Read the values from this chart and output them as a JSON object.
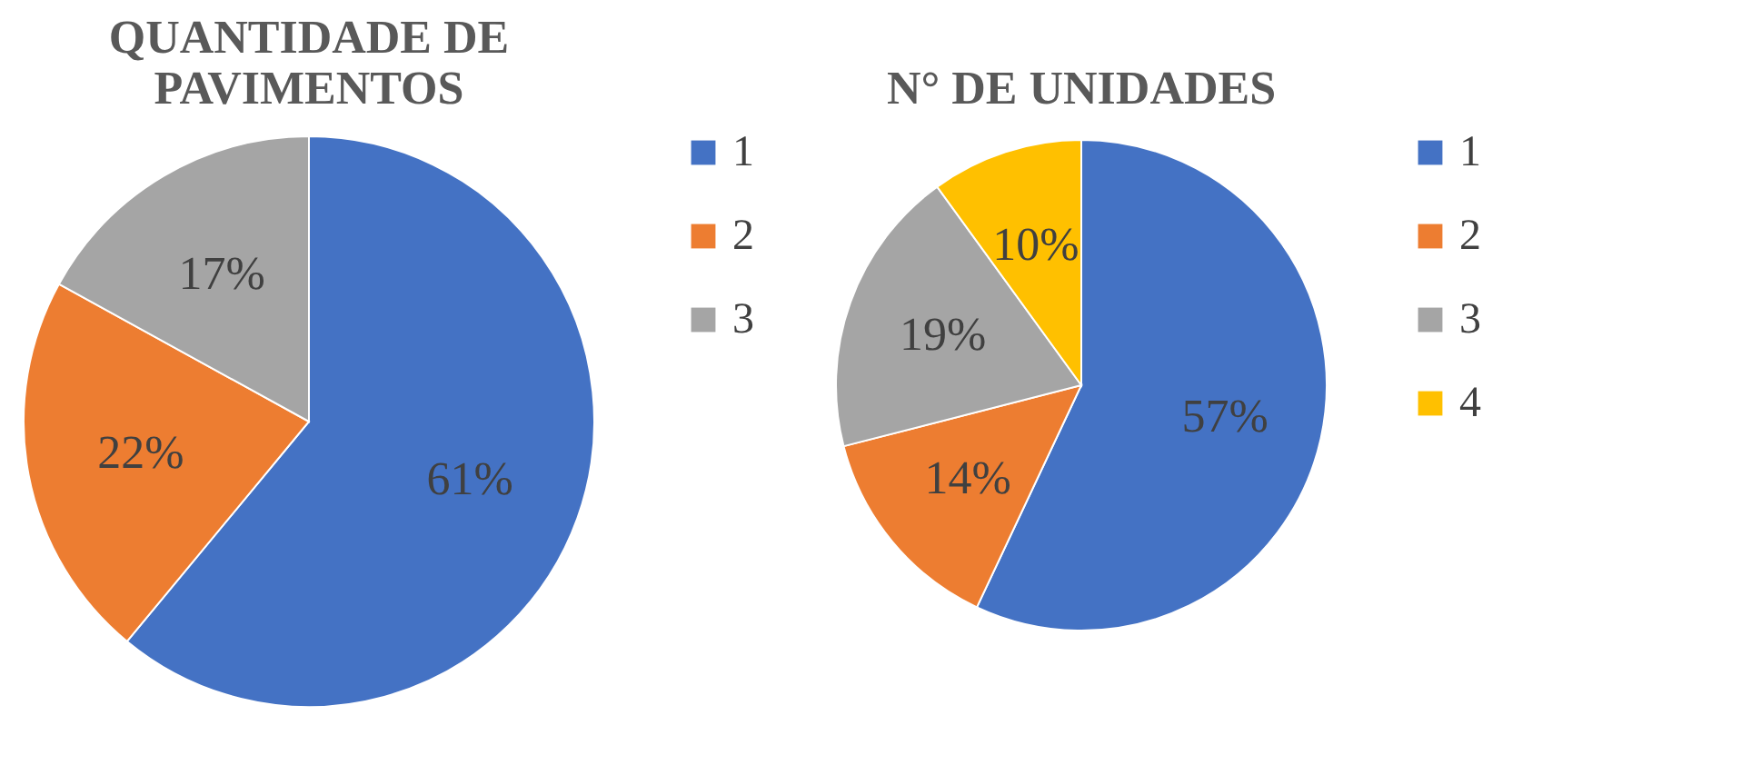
{
  "chart_data": [
    {
      "type": "pie",
      "title": "QUANTIDADE DE PAVIMENTOS",
      "categories": [
        "1",
        "2",
        "3"
      ],
      "values": [
        61,
        22,
        17
      ],
      "colors": [
        "#4472c4",
        "#ed7d31",
        "#a5a5a5"
      ],
      "value_labels": [
        "61%",
        "22%",
        "17%"
      ],
      "legend": "right"
    },
    {
      "type": "pie",
      "title": "N° DE UNIDADES",
      "categories": [
        "1",
        "2",
        "3",
        "4"
      ],
      "values": [
        57,
        14,
        19,
        10
      ],
      "colors": [
        "#4472c4",
        "#ed7d31",
        "#a5a5a5",
        "#ffc000"
      ],
      "value_labels": [
        "57%",
        "14%",
        "19%",
        "10%"
      ],
      "legend": "right"
    }
  ]
}
